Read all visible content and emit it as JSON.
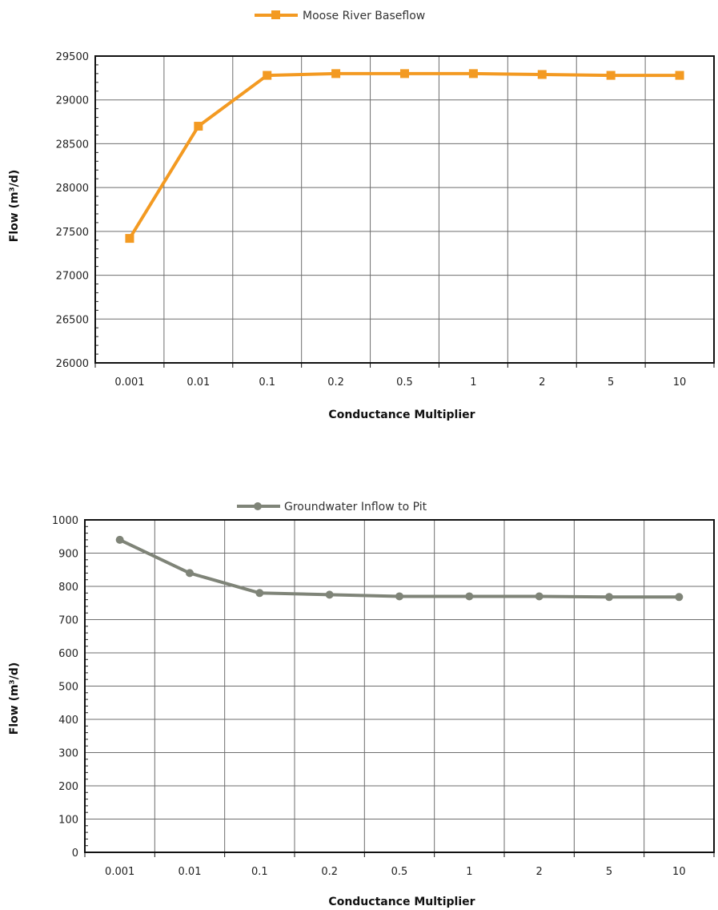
{
  "chart_data": [
    {
      "type": "line",
      "categories": [
        "0.001",
        "0.01",
        "0.1",
        "0.2",
        "0.5",
        "1",
        "2",
        "5",
        "10"
      ],
      "series": [
        {
          "name": "Moose River Baseflow",
          "values": [
            27420,
            28700,
            29280,
            29300,
            29300,
            29300,
            29290,
            29280,
            29280
          ],
          "color": "#f39a22",
          "marker": "square"
        }
      ],
      "xlabel": "Conductance Multiplier",
      "ylabel": "Flow (m³/d)",
      "ylim": [
        26000,
        29500
      ],
      "yticks": [
        "26000",
        "26500",
        "27000",
        "27500",
        "28000",
        "28500",
        "29000",
        "29500"
      ],
      "grid": true,
      "legend": "top-center"
    },
    {
      "type": "line",
      "categories": [
        "0.001",
        "0.01",
        "0.1",
        "0.2",
        "0.5",
        "1",
        "2",
        "5",
        "10"
      ],
      "series": [
        {
          "name": "Groundwater Inflow to Pit",
          "values": [
            940,
            840,
            780,
            775,
            770,
            770,
            770,
            768,
            768
          ],
          "color": "#7f8478",
          "marker": "circle"
        }
      ],
      "xlabel": "Conductance Multiplier",
      "ylabel": "Flow (m³/d)",
      "ylim": [
        0,
        1000
      ],
      "yticks": [
        "0",
        "100",
        "200",
        "300",
        "400",
        "500",
        "600",
        "700",
        "800",
        "900",
        "1000"
      ],
      "grid": true,
      "legend": "top-center"
    }
  ]
}
